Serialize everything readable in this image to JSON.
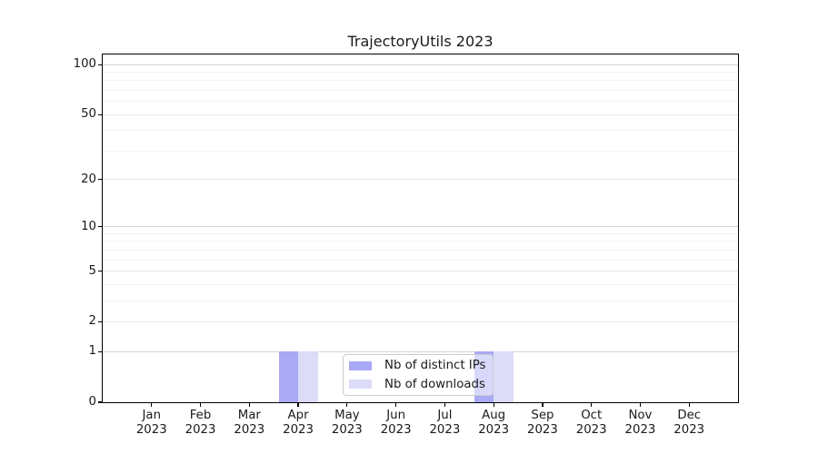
{
  "chart_data": {
    "type": "bar",
    "title": "TrajectoryUtils 2023",
    "categories": [
      "Jan 2023",
      "Feb 2023",
      "Mar 2023",
      "Apr 2023",
      "May 2023",
      "Jun 2023",
      "Jul 2023",
      "Aug 2023",
      "Sep 2023",
      "Oct 2023",
      "Nov 2023",
      "Dec 2023"
    ],
    "series": [
      {
        "name": "Nb of distinct IPs",
        "key": "distinct-ips",
        "color": "#a9a9f5",
        "values": [
          0,
          0,
          0,
          1,
          0,
          0,
          0,
          1,
          0,
          0,
          0,
          0
        ]
      },
      {
        "name": "Nb of downloads",
        "key": "downloads",
        "color": "#dcdcf8",
        "values": [
          0,
          0,
          0,
          1,
          0,
          0,
          0,
          1,
          0,
          0,
          0,
          0
        ]
      }
    ],
    "xlabel": "",
    "ylabel": "",
    "yscale": "log1p",
    "ylim": [
      0,
      115
    ],
    "y_major_ticks": [
      0,
      1,
      2,
      5,
      10,
      20,
      50,
      100
    ],
    "y_minor_ticks": [
      3,
      4,
      6,
      7,
      8,
      9,
      30,
      40,
      60,
      70,
      80,
      90
    ],
    "grid": "horizontal",
    "legend_position": "lower center"
  },
  "colors": {
    "bar_distinct_ips": "#a9a9f5",
    "bar_downloads": "#dcdcf8",
    "grid_power10": "#d4d4d4",
    "grid_major": "#e7e7e7",
    "grid_minor": "#f3f3f3",
    "axis": "#000000",
    "text": "#1a1a1a",
    "legend_border": "#cccccc"
  }
}
